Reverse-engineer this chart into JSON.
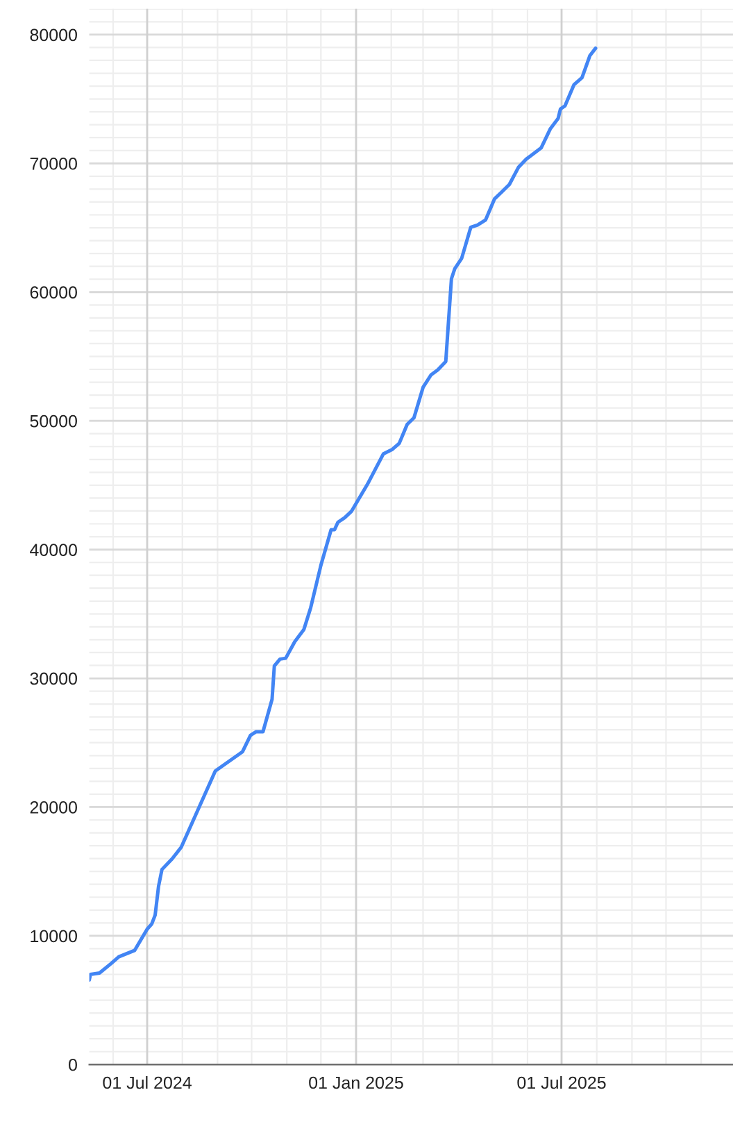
{
  "chart_data": {
    "type": "line",
    "x": [
      "2024-05-11",
      "2024-05-12",
      "2024-05-20",
      "2024-05-30",
      "2024-06-06",
      "2024-06-20",
      "2024-07-01",
      "2024-07-05",
      "2024-07-08",
      "2024-07-11",
      "2024-07-14",
      "2024-07-23",
      "2024-07-31",
      "2024-08-30",
      "2024-09-23",
      "2024-09-30",
      "2024-10-05",
      "2024-10-11",
      "2024-10-19",
      "2024-10-21",
      "2024-10-26",
      "2024-10-31",
      "2024-11-08",
      "2024-11-16",
      "2024-11-22",
      "2024-12-01",
      "2024-12-10",
      "2024-12-13",
      "2024-12-16",
      "2024-12-22",
      "2024-12-28",
      "2025-01-11",
      "2025-01-25",
      "2025-02-02",
      "2025-02-08",
      "2025-02-15",
      "2025-02-21",
      "2025-03-01",
      "2025-03-08",
      "2025-03-14",
      "2025-03-21",
      "2025-03-26",
      "2025-03-29",
      "2025-04-04",
      "2025-04-12",
      "2025-04-18",
      "2025-04-25",
      "2025-05-03",
      "2025-05-09",
      "2025-05-16",
      "2025-05-24",
      "2025-05-31",
      "2025-06-13",
      "2025-06-21",
      "2025-06-28",
      "2025-06-30",
      "2025-07-04",
      "2025-07-12",
      "2025-07-19",
      "2025-07-26",
      "2025-07-31"
    ],
    "series": [
      {
        "color": "#4285f4",
        "values": [
          6570,
          7000,
          7110,
          7830,
          8370,
          8870,
          10520,
          10920,
          11600,
          13830,
          15150,
          15980,
          16880,
          22800,
          24300,
          25570,
          25850,
          25850,
          28370,
          30960,
          31490,
          31560,
          32850,
          33790,
          35480,
          38780,
          41540,
          41540,
          42120,
          42480,
          42980,
          45070,
          47430,
          47790,
          48250,
          49730,
          50240,
          52600,
          53570,
          53960,
          54610,
          61040,
          61830,
          62620,
          65030,
          65210,
          65600,
          67250,
          67750,
          68360,
          69690,
          70340,
          71200,
          72670,
          73500,
          74220,
          74470,
          76120,
          76660,
          78380,
          78950
        ]
      }
    ],
    "xlim": [
      "2024-05-11",
      "2025-11-29"
    ],
    "xticks": [
      {
        "value": "2024-07-01",
        "label": "01 Jul 2024"
      },
      {
        "value": "2025-01-01",
        "label": "01 Jan 2025"
      },
      {
        "value": "2025-07-01",
        "label": "01 Jul 2025"
      }
    ],
    "ylim": [
      0,
      82000
    ],
    "yticks": [
      0,
      10000,
      20000,
      30000,
      40000,
      50000,
      60000,
      70000,
      80000
    ],
    "grid": true,
    "line_style": "solid",
    "marker": "none"
  }
}
